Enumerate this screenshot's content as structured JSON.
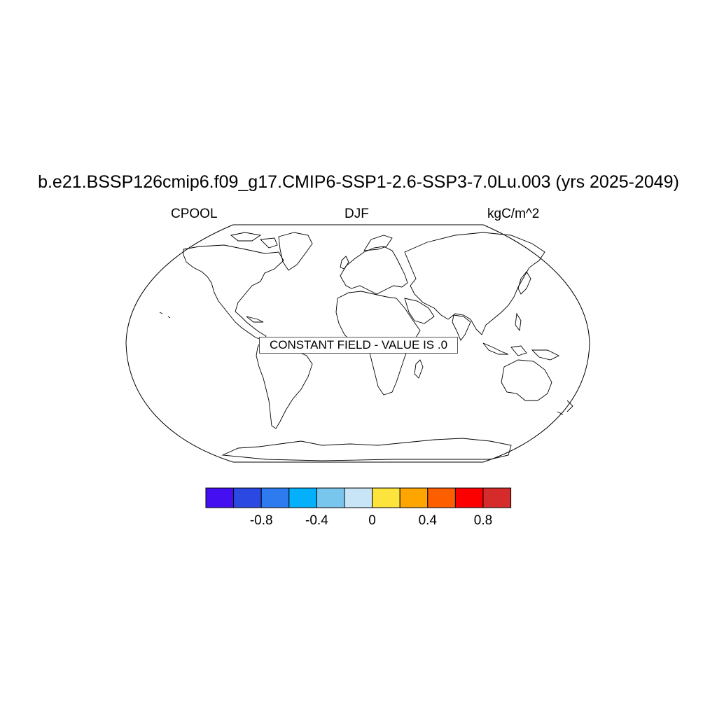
{
  "title": "b.e21.BSSP126cmip6.f09_g17.CMIP6-SSP1-2.6-SSP3-7.0Lu.003 (yrs 2025-2049)",
  "left_label": "CPOOL",
  "center_label": "DJF",
  "right_label": "kgC/m^2",
  "message": "CONSTANT FIELD - VALUE IS .0",
  "colorbar": {
    "colors": [
      "#4410f2",
      "#2b48e3",
      "#2e7bef",
      "#04b0fb",
      "#78c6ee",
      "#c7e5f7",
      "#fde43c",
      "#fea500",
      "#fd5e00",
      "#fc0000",
      "#d52b2b"
    ],
    "labels": [
      "-0.8",
      "-0.4",
      "0",
      "0.4",
      "0.8"
    ]
  }
}
